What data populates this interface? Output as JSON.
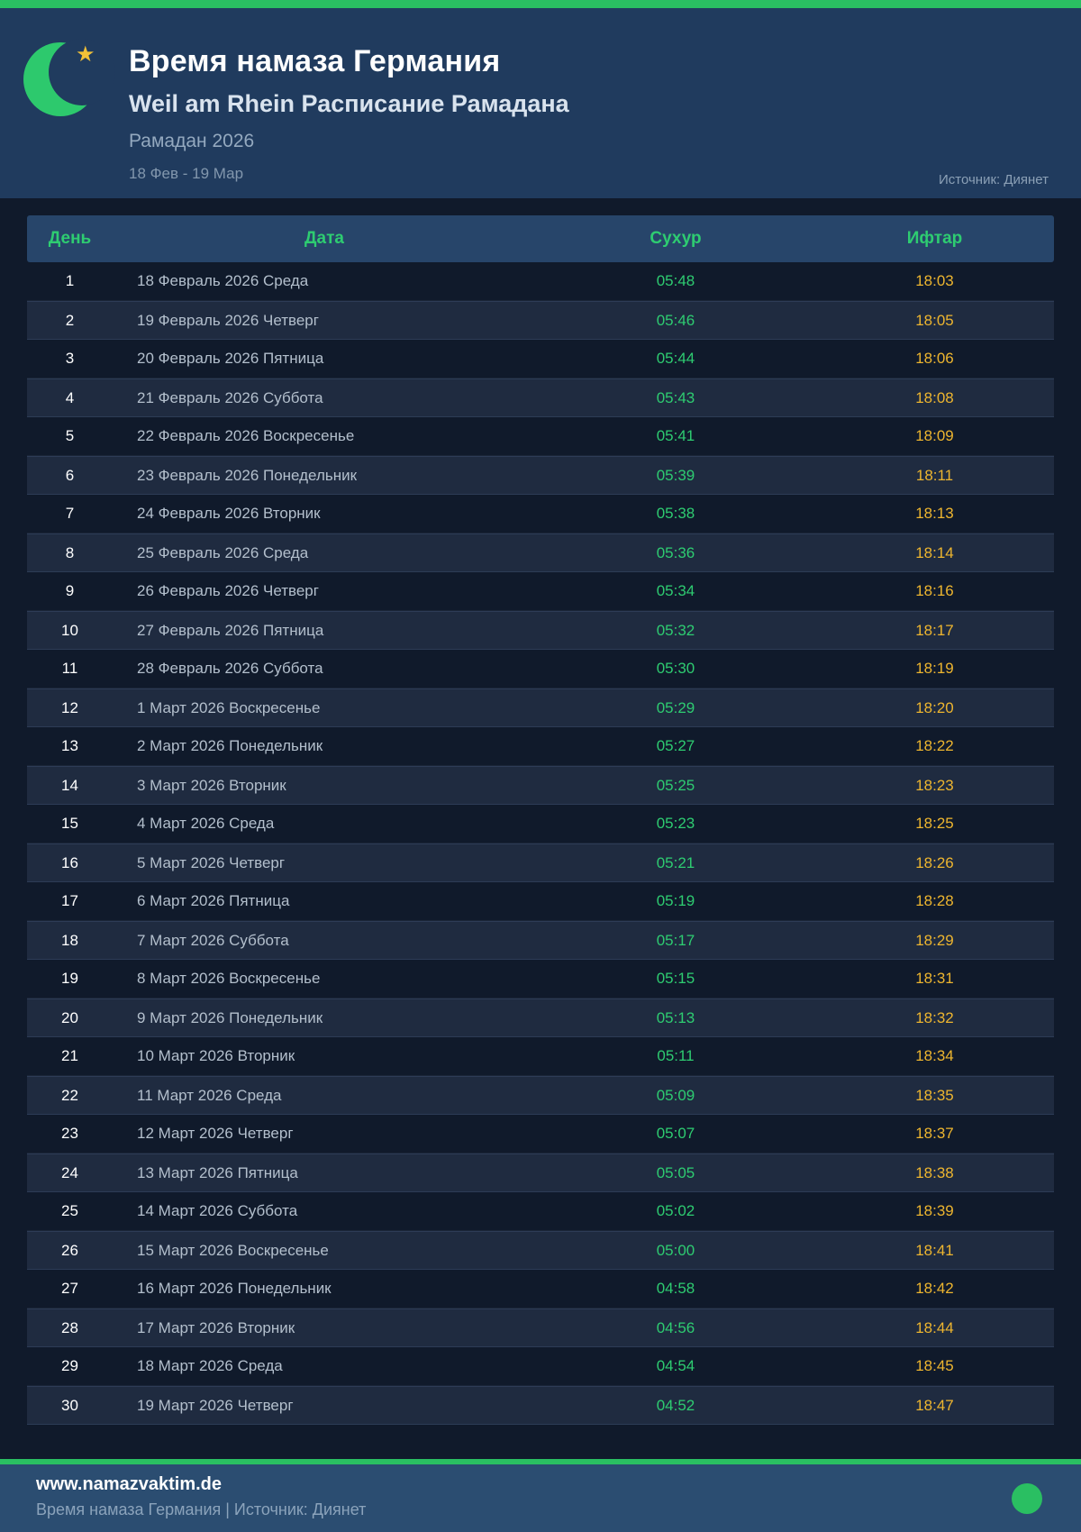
{
  "header": {
    "title": "Время намаза Германия",
    "subtitle": "Weil am Rhein Расписание Рамадана",
    "period_label": "Рамадан 2026",
    "date_range": "18 Фев - 19 Мар",
    "source": "Источник: Диянет"
  },
  "icons": {
    "crescent": "crescent-moon",
    "star_glyph": "★"
  },
  "colors": {
    "accent_green": "#2abf62",
    "moon_green": "#2dc96d",
    "star_gold": "#f2c137",
    "time_green": "#2ecc71",
    "iftar_gold": "#edb52f",
    "header_bg": "#203b5e",
    "page_bg": "#101a2b",
    "footer_bg": "#2b4d71"
  },
  "table": {
    "columns": [
      "День",
      "Дата",
      "Сухур",
      "Ифтар"
    ],
    "rows": [
      {
        "day": "1",
        "date": "18 Февраль 2026 Среда",
        "suhur": "05:48",
        "iftar": "18:03"
      },
      {
        "day": "2",
        "date": "19 Февраль 2026 Четверг",
        "suhur": "05:46",
        "iftar": "18:05"
      },
      {
        "day": "3",
        "date": "20 Февраль 2026 Пятница",
        "suhur": "05:44",
        "iftar": "18:06"
      },
      {
        "day": "4",
        "date": "21 Февраль 2026 Суббота",
        "suhur": "05:43",
        "iftar": "18:08"
      },
      {
        "day": "5",
        "date": "22 Февраль 2026 Воскресенье",
        "suhur": "05:41",
        "iftar": "18:09"
      },
      {
        "day": "6",
        "date": "23 Февраль 2026 Понедельник",
        "suhur": "05:39",
        "iftar": "18:11"
      },
      {
        "day": "7",
        "date": "24 Февраль 2026 Вторник",
        "suhur": "05:38",
        "iftar": "18:13"
      },
      {
        "day": "8",
        "date": "25 Февраль 2026 Среда",
        "suhur": "05:36",
        "iftar": "18:14"
      },
      {
        "day": "9",
        "date": "26 Февраль 2026 Четверг",
        "suhur": "05:34",
        "iftar": "18:16"
      },
      {
        "day": "10",
        "date": "27 Февраль 2026 Пятница",
        "suhur": "05:32",
        "iftar": "18:17"
      },
      {
        "day": "11",
        "date": "28 Февраль 2026 Суббота",
        "suhur": "05:30",
        "iftar": "18:19"
      },
      {
        "day": "12",
        "date": "1 Март 2026 Воскресенье",
        "suhur": "05:29",
        "iftar": "18:20"
      },
      {
        "day": "13",
        "date": "2 Март 2026 Понедельник",
        "suhur": "05:27",
        "iftar": "18:22"
      },
      {
        "day": "14",
        "date": "3 Март 2026 Вторник",
        "suhur": "05:25",
        "iftar": "18:23"
      },
      {
        "day": "15",
        "date": "4 Март 2026 Среда",
        "suhur": "05:23",
        "iftar": "18:25"
      },
      {
        "day": "16",
        "date": "5 Март 2026 Четверг",
        "suhur": "05:21",
        "iftar": "18:26"
      },
      {
        "day": "17",
        "date": "6 Март 2026 Пятница",
        "suhur": "05:19",
        "iftar": "18:28"
      },
      {
        "day": "18",
        "date": "7 Март 2026 Суббота",
        "suhur": "05:17",
        "iftar": "18:29"
      },
      {
        "day": "19",
        "date": "8 Март 2026 Воскресенье",
        "suhur": "05:15",
        "iftar": "18:31"
      },
      {
        "day": "20",
        "date": "9 Март 2026 Понедельник",
        "suhur": "05:13",
        "iftar": "18:32"
      },
      {
        "day": "21",
        "date": "10 Март 2026 Вторник",
        "suhur": "05:11",
        "iftar": "18:34"
      },
      {
        "day": "22",
        "date": "11 Март 2026 Среда",
        "suhur": "05:09",
        "iftar": "18:35"
      },
      {
        "day": "23",
        "date": "12 Март 2026 Четверг",
        "suhur": "05:07",
        "iftar": "18:37"
      },
      {
        "day": "24",
        "date": "13 Март 2026 Пятница",
        "suhur": "05:05",
        "iftar": "18:38"
      },
      {
        "day": "25",
        "date": "14 Март 2026 Суббота",
        "suhur": "05:02",
        "iftar": "18:39"
      },
      {
        "day": "26",
        "date": "15 Март 2026 Воскресенье",
        "suhur": "05:00",
        "iftar": "18:41"
      },
      {
        "day": "27",
        "date": "16 Март 2026 Понедельник",
        "suhur": "04:58",
        "iftar": "18:42"
      },
      {
        "day": "28",
        "date": "17 Март 2026 Вторник",
        "suhur": "04:56",
        "iftar": "18:44"
      },
      {
        "day": "29",
        "date": "18 Март 2026 Среда",
        "suhur": "04:54",
        "iftar": "18:45"
      },
      {
        "day": "30",
        "date": "19 Март 2026 Четверг",
        "suhur": "04:52",
        "iftar": "18:47"
      }
    ]
  },
  "footer": {
    "website": "www.namazvaktim.de",
    "tagline": "Время намаза Германия | Источник: Диянет"
  }
}
